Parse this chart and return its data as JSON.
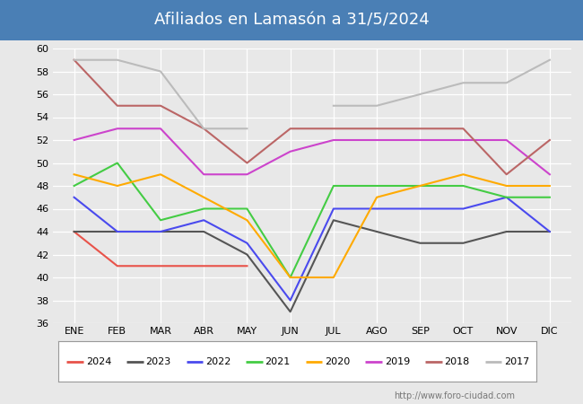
{
  "title": "Afiliados en Lamasón a 31/5/2024",
  "months": [
    "ENE",
    "FEB",
    "MAR",
    "ABR",
    "MAY",
    "JUN",
    "JUL",
    "AGO",
    "SEP",
    "OCT",
    "NOV",
    "DIC"
  ],
  "ylim": [
    36,
    60
  ],
  "yticks": [
    36,
    38,
    40,
    42,
    44,
    46,
    48,
    50,
    52,
    54,
    56,
    58,
    60
  ],
  "series": {
    "2024": {
      "color": "#e8534a",
      "data": [
        44,
        41,
        41,
        41,
        41,
        null,
        null,
        null,
        null,
        null,
        null,
        null
      ]
    },
    "2023": {
      "color": "#555555",
      "data": [
        44,
        44,
        44,
        44,
        42,
        37,
        45,
        44,
        43,
        43,
        44,
        44
      ]
    },
    "2022": {
      "color": "#4a4aee",
      "data": [
        47,
        44,
        44,
        45,
        43,
        38,
        46,
        46,
        46,
        46,
        47,
        44
      ]
    },
    "2021": {
      "color": "#44cc44",
      "data": [
        48,
        50,
        45,
        46,
        46,
        40,
        48,
        48,
        48,
        48,
        47,
        47
      ]
    },
    "2020": {
      "color": "#ffaa00",
      "data": [
        49,
        48,
        49,
        47,
        45,
        40,
        40,
        47,
        48,
        49,
        48,
        48
      ]
    },
    "2019": {
      "color": "#cc44cc",
      "data": [
        52,
        53,
        53,
        49,
        49,
        51,
        52,
        52,
        52,
        52,
        52,
        49
      ]
    },
    "2018": {
      "color": "#bb6666",
      "data": [
        59,
        55,
        55,
        53,
        50,
        53,
        53,
        53,
        53,
        53,
        49,
        52
      ]
    },
    "2017": {
      "color": "#bbbbbb",
      "data": [
        59,
        59,
        58,
        53,
        53,
        null,
        55,
        55,
        56,
        57,
        57,
        59
      ]
    }
  },
  "legend_order": [
    "2024",
    "2023",
    "2022",
    "2021",
    "2020",
    "2019",
    "2018",
    "2017"
  ],
  "title_bg_color": "#4a7fb5",
  "title_text_color": "white",
  "plot_bg_color": "#e8e8e8",
  "chart_bg_color": "#e8e8e8",
  "watermark": "http://www.foro-ciudad.com",
  "title_fontsize": 13,
  "tick_fontsize": 8,
  "legend_fontsize": 8,
  "linewidth": 1.5
}
